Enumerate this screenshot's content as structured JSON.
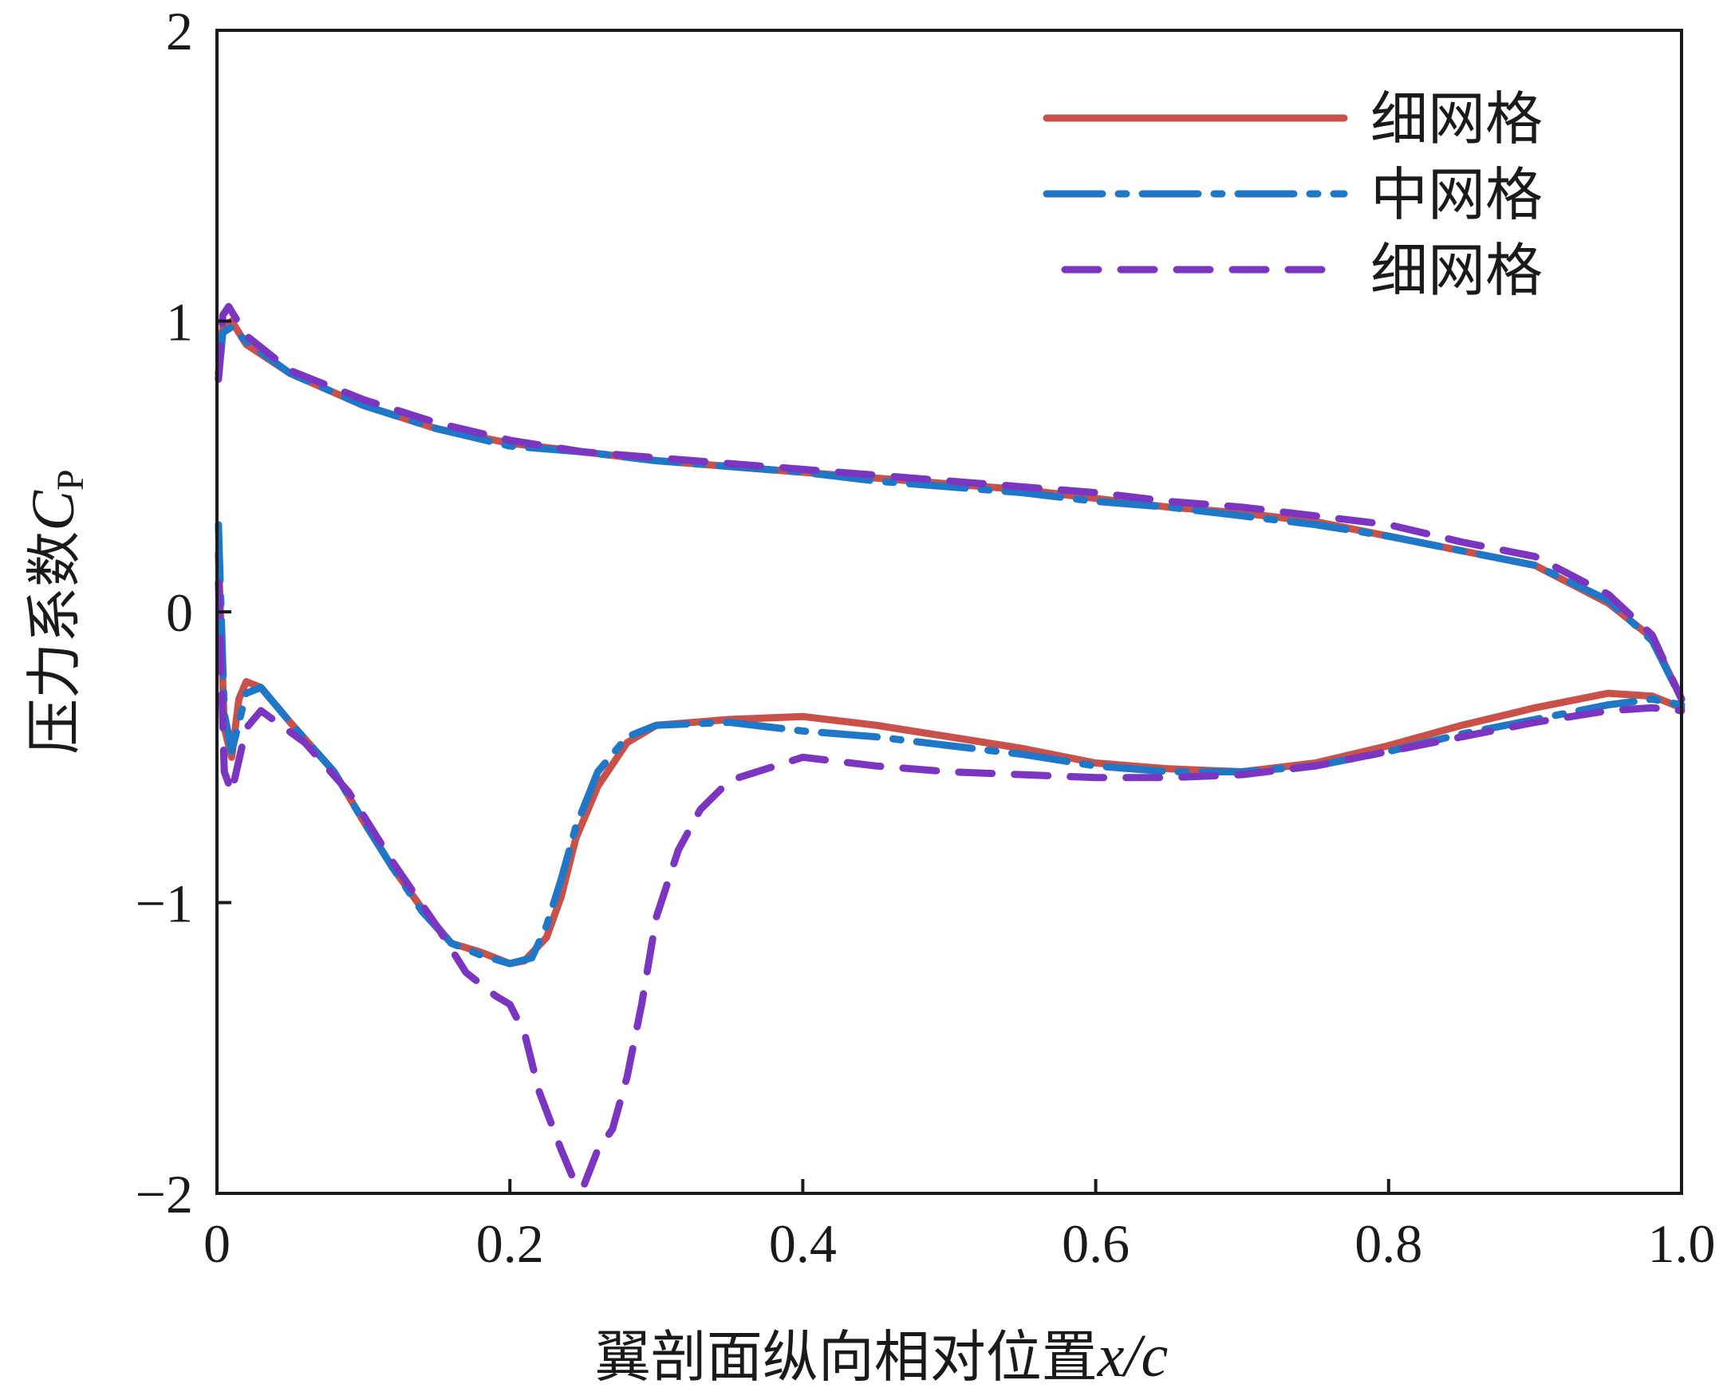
{
  "chart_data": {
    "type": "line",
    "title": "",
    "xlabel": "翼剖面纵向相对位置",
    "xlabel_var": "x/c",
    "ylabel": "压力系数",
    "ylabel_var": "C",
    "ylabel_sub": "P",
    "xlim": [
      0,
      1.0
    ],
    "ylim": [
      -2,
      2
    ],
    "xticks": [
      {
        "value": 0,
        "label": "0"
      },
      {
        "value": 0.2,
        "label": "0.2"
      },
      {
        "value": 0.4,
        "label": "0.4"
      },
      {
        "value": 0.6,
        "label": "0.6"
      },
      {
        "value": 0.8,
        "label": "0.8"
      },
      {
        "value": 1.0,
        "label": "1.0"
      }
    ],
    "yticks": [
      {
        "value": 2,
        "label": "2"
      },
      {
        "value": 1,
        "label": "1"
      },
      {
        "value": 0,
        "label": "0"
      },
      {
        "value": -1,
        "label": "−1"
      },
      {
        "value": -2,
        "label": "−2"
      }
    ],
    "legend_position": "top-right",
    "series": [
      {
        "name": "细网格",
        "color": "#c9514a",
        "style": "solid",
        "upper": [
          [
            0.001,
            0.82
          ],
          [
            0.004,
            0.98
          ],
          [
            0.01,
            1.0
          ],
          [
            0.02,
            0.92
          ],
          [
            0.05,
            0.82
          ],
          [
            0.1,
            0.71
          ],
          [
            0.15,
            0.63
          ],
          [
            0.2,
            0.58
          ],
          [
            0.25,
            0.55
          ],
          [
            0.3,
            0.52
          ],
          [
            0.35,
            0.5
          ],
          [
            0.4,
            0.48
          ],
          [
            0.45,
            0.46
          ],
          [
            0.5,
            0.44
          ],
          [
            0.55,
            0.42
          ],
          [
            0.6,
            0.39
          ],
          [
            0.65,
            0.36
          ],
          [
            0.7,
            0.34
          ],
          [
            0.75,
            0.31
          ],
          [
            0.8,
            0.26
          ],
          [
            0.85,
            0.21
          ],
          [
            0.9,
            0.16
          ],
          [
            0.95,
            0.03
          ],
          [
            0.98,
            -0.09
          ],
          [
            1.0,
            -0.3
          ]
        ],
        "lower": [
          [
            0.001,
            0.2
          ],
          [
            0.005,
            -0.4
          ],
          [
            0.01,
            -0.5
          ],
          [
            0.015,
            -0.3
          ],
          [
            0.02,
            -0.24
          ],
          [
            0.03,
            -0.26
          ],
          [
            0.05,
            -0.38
          ],
          [
            0.08,
            -0.55
          ],
          [
            0.1,
            -0.72
          ],
          [
            0.12,
            -0.88
          ],
          [
            0.14,
            -1.02
          ],
          [
            0.16,
            -1.14
          ],
          [
            0.18,
            -1.17
          ],
          [
            0.2,
            -1.21
          ],
          [
            0.21,
            -1.2
          ],
          [
            0.225,
            -1.12
          ],
          [
            0.235,
            -0.98
          ],
          [
            0.245,
            -0.78
          ],
          [
            0.26,
            -0.6
          ],
          [
            0.28,
            -0.45
          ],
          [
            0.3,
            -0.39
          ],
          [
            0.35,
            -0.37
          ],
          [
            0.4,
            -0.36
          ],
          [
            0.45,
            -0.39
          ],
          [
            0.5,
            -0.43
          ],
          [
            0.55,
            -0.47
          ],
          [
            0.6,
            -0.52
          ],
          [
            0.65,
            -0.54
          ],
          [
            0.7,
            -0.55
          ],
          [
            0.75,
            -0.52
          ],
          [
            0.8,
            -0.46
          ],
          [
            0.85,
            -0.39
          ],
          [
            0.9,
            -0.33
          ],
          [
            0.95,
            -0.28
          ],
          [
            0.98,
            -0.29
          ],
          [
            1.0,
            -0.33
          ]
        ]
      },
      {
        "name": "中网格",
        "color": "#1f77c8",
        "style": "dashdot",
        "upper": [
          [
            0.001,
            0.8
          ],
          [
            0.004,
            0.96
          ],
          [
            0.01,
            0.98
          ],
          [
            0.02,
            0.93
          ],
          [
            0.05,
            0.82
          ],
          [
            0.1,
            0.71
          ],
          [
            0.15,
            0.63
          ],
          [
            0.2,
            0.57
          ],
          [
            0.25,
            0.55
          ],
          [
            0.3,
            0.52
          ],
          [
            0.35,
            0.5
          ],
          [
            0.4,
            0.48
          ],
          [
            0.45,
            0.45
          ],
          [
            0.5,
            0.43
          ],
          [
            0.55,
            0.41
          ],
          [
            0.6,
            0.38
          ],
          [
            0.65,
            0.36
          ],
          [
            0.7,
            0.33
          ],
          [
            0.75,
            0.3
          ],
          [
            0.8,
            0.26
          ],
          [
            0.85,
            0.21
          ],
          [
            0.9,
            0.16
          ],
          [
            0.95,
            0.04
          ],
          [
            0.98,
            -0.1
          ],
          [
            1.0,
            -0.3
          ]
        ],
        "lower": [
          [
            0.001,
            0.3
          ],
          [
            0.005,
            -0.35
          ],
          [
            0.01,
            -0.48
          ],
          [
            0.02,
            -0.28
          ],
          [
            0.03,
            -0.26
          ],
          [
            0.05,
            -0.38
          ],
          [
            0.08,
            -0.55
          ],
          [
            0.1,
            -0.72
          ],
          [
            0.12,
            -0.88
          ],
          [
            0.14,
            -1.03
          ],
          [
            0.16,
            -1.14
          ],
          [
            0.18,
            -1.18
          ],
          [
            0.2,
            -1.21
          ],
          [
            0.215,
            -1.19
          ],
          [
            0.225,
            -1.08
          ],
          [
            0.235,
            -0.92
          ],
          [
            0.245,
            -0.74
          ],
          [
            0.26,
            -0.55
          ],
          [
            0.28,
            -0.43
          ],
          [
            0.3,
            -0.39
          ],
          [
            0.35,
            -0.38
          ],
          [
            0.4,
            -0.41
          ],
          [
            0.45,
            -0.43
          ],
          [
            0.5,
            -0.46
          ],
          [
            0.55,
            -0.49
          ],
          [
            0.6,
            -0.53
          ],
          [
            0.65,
            -0.55
          ],
          [
            0.7,
            -0.55
          ],
          [
            0.75,
            -0.53
          ],
          [
            0.8,
            -0.48
          ],
          [
            0.85,
            -0.42
          ],
          [
            0.9,
            -0.37
          ],
          [
            0.95,
            -0.32
          ],
          [
            0.98,
            -0.3
          ],
          [
            1.0,
            -0.32
          ]
        ]
      },
      {
        "name": "细网格",
        "color": "#7b35c1",
        "style": "dashed",
        "upper": [
          [
            0.001,
            0.8
          ],
          [
            0.004,
            1.02
          ],
          [
            0.008,
            1.05
          ],
          [
            0.02,
            0.95
          ],
          [
            0.05,
            0.83
          ],
          [
            0.1,
            0.73
          ],
          [
            0.15,
            0.65
          ],
          [
            0.2,
            0.59
          ],
          [
            0.25,
            0.55
          ],
          [
            0.3,
            0.53
          ],
          [
            0.35,
            0.51
          ],
          [
            0.4,
            0.49
          ],
          [
            0.45,
            0.47
          ],
          [
            0.5,
            0.45
          ],
          [
            0.55,
            0.43
          ],
          [
            0.6,
            0.41
          ],
          [
            0.65,
            0.38
          ],
          [
            0.7,
            0.36
          ],
          [
            0.75,
            0.33
          ],
          [
            0.8,
            0.3
          ],
          [
            0.85,
            0.24
          ],
          [
            0.9,
            0.19
          ],
          [
            0.95,
            0.06
          ],
          [
            0.98,
            -0.08
          ],
          [
            1.0,
            -0.3
          ]
        ],
        "lower": [
          [
            0.001,
            0.1
          ],
          [
            0.005,
            -0.55
          ],
          [
            0.01,
            -0.62
          ],
          [
            0.02,
            -0.4
          ],
          [
            0.03,
            -0.34
          ],
          [
            0.06,
            -0.45
          ],
          [
            0.09,
            -0.62
          ],
          [
            0.12,
            -0.86
          ],
          [
            0.15,
            -1.08
          ],
          [
            0.17,
            -1.24
          ],
          [
            0.19,
            -1.32
          ],
          [
            0.2,
            -1.35
          ],
          [
            0.21,
            -1.45
          ],
          [
            0.22,
            -1.65
          ],
          [
            0.235,
            -1.85
          ],
          [
            0.245,
            -1.97
          ],
          [
            0.25,
            -1.98
          ],
          [
            0.26,
            -1.85
          ],
          [
            0.27,
            -1.78
          ],
          [
            0.28,
            -1.6
          ],
          [
            0.29,
            -1.35
          ],
          [
            0.3,
            -1.05
          ],
          [
            0.315,
            -0.82
          ],
          [
            0.33,
            -0.68
          ],
          [
            0.35,
            -0.58
          ],
          [
            0.4,
            -0.5
          ],
          [
            0.45,
            -0.53
          ],
          [
            0.5,
            -0.55
          ],
          [
            0.55,
            -0.56
          ],
          [
            0.6,
            -0.57
          ],
          [
            0.65,
            -0.57
          ],
          [
            0.7,
            -0.56
          ],
          [
            0.75,
            -0.53
          ],
          [
            0.8,
            -0.48
          ],
          [
            0.85,
            -0.43
          ],
          [
            0.9,
            -0.38
          ],
          [
            0.95,
            -0.34
          ],
          [
            0.98,
            -0.33
          ],
          [
            1.0,
            -0.34
          ]
        ]
      }
    ]
  }
}
